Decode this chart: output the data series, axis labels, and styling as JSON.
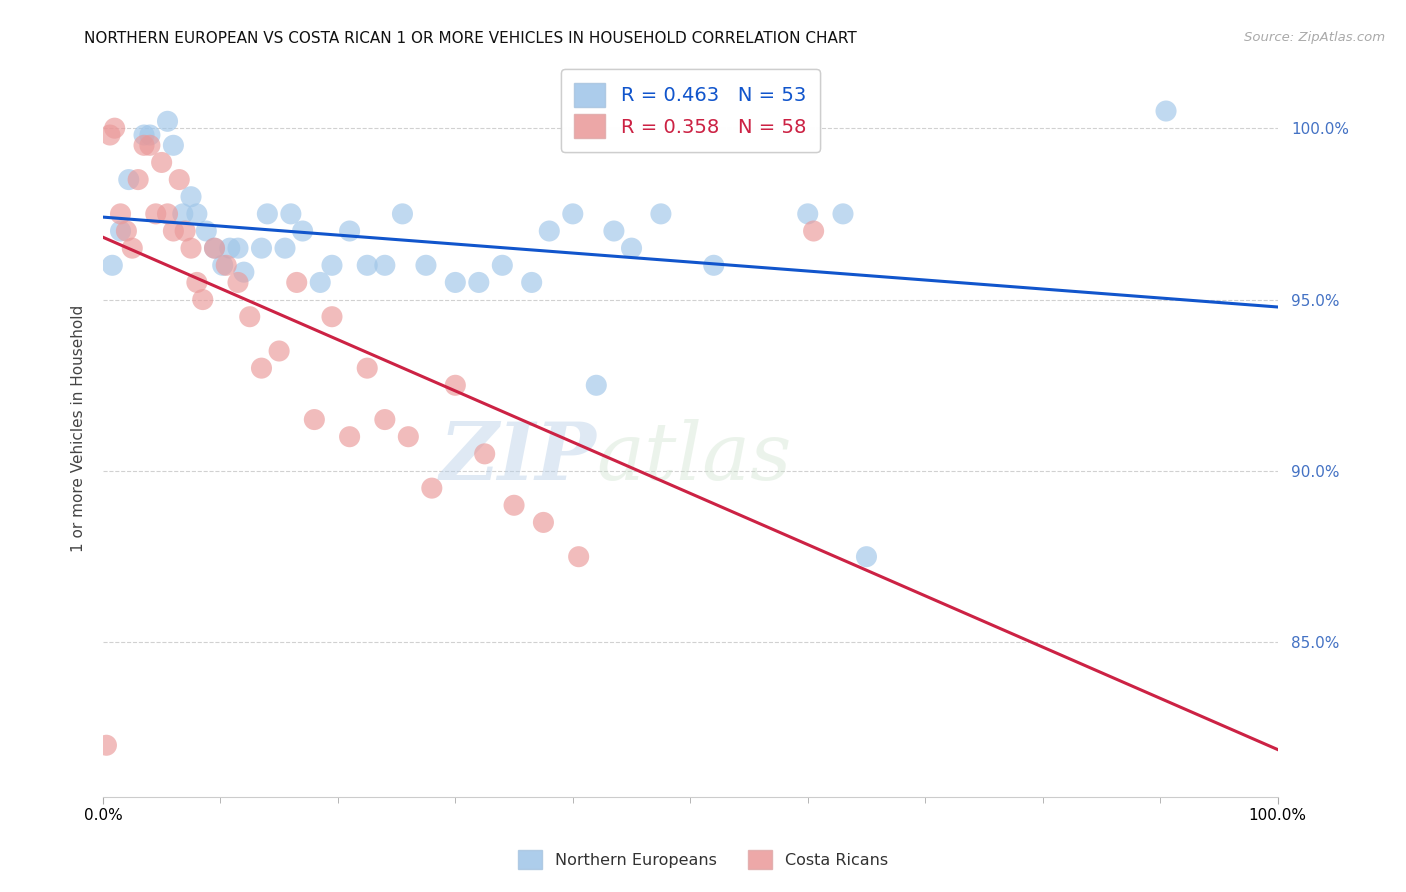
{
  "title": "NORTHERN EUROPEAN VS COSTA RICAN 1 OR MORE VEHICLES IN HOUSEHOLD CORRELATION CHART",
  "source": "Source: ZipAtlas.com",
  "ylabel": "1 or more Vehicles in Household",
  "xmin": 0.0,
  "xmax": 100.0,
  "ymin": 80.5,
  "ymax": 102.0,
  "blue_R": 0.463,
  "blue_N": 53,
  "pink_R": 0.358,
  "pink_N": 58,
  "blue_color": "#9fc5e8",
  "pink_color": "#ea9999",
  "blue_line_color": "#1155cc",
  "pink_line_color": "#cc2244",
  "watermark_zip": "ZIP",
  "watermark_atlas": "atlas",
  "yticks": [
    85.0,
    90.0,
    95.0,
    100.0
  ],
  "blue_x": [
    0.8,
    1.5,
    2.2,
    3.5,
    4.0,
    5.5,
    6.0,
    6.8,
    7.5,
    8.0,
    8.8,
    9.5,
    10.2,
    10.8,
    11.5,
    12.0,
    13.5,
    14.0,
    15.5,
    16.0,
    17.0,
    18.5,
    19.5,
    21.0,
    22.5,
    24.0,
    25.5,
    27.5,
    30.0,
    32.0,
    34.0,
    36.5,
    38.0,
    40.0,
    42.0,
    43.5,
    45.0,
    47.5,
    52.0,
    60.0,
    63.0,
    65.0,
    90.5
  ],
  "blue_y": [
    96.0,
    97.0,
    98.5,
    99.8,
    99.8,
    100.2,
    99.5,
    97.5,
    98.0,
    97.5,
    97.0,
    96.5,
    96.0,
    96.5,
    96.5,
    95.8,
    96.5,
    97.5,
    96.5,
    97.5,
    97.0,
    95.5,
    96.0,
    97.0,
    96.0,
    96.0,
    97.5,
    96.0,
    95.5,
    95.5,
    96.0,
    95.5,
    97.0,
    97.5,
    92.5,
    97.0,
    96.5,
    97.5,
    96.0,
    97.5,
    97.5,
    87.5,
    100.5
  ],
  "pink_x": [
    0.3,
    0.6,
    1.0,
    1.5,
    2.0,
    2.5,
    3.0,
    3.5,
    4.0,
    4.5,
    5.0,
    5.5,
    6.0,
    6.5,
    7.0,
    7.5,
    8.0,
    8.5,
    9.5,
    10.5,
    11.5,
    12.5,
    13.5,
    15.0,
    16.5,
    18.0,
    19.5,
    21.0,
    22.5,
    24.0,
    26.0,
    28.0,
    30.0,
    32.5,
    35.0,
    37.5,
    40.5,
    60.5
  ],
  "pink_y": [
    82.0,
    99.8,
    100.0,
    97.5,
    97.0,
    96.5,
    98.5,
    99.5,
    99.5,
    97.5,
    99.0,
    97.5,
    97.0,
    98.5,
    97.0,
    96.5,
    95.5,
    95.0,
    96.5,
    96.0,
    95.5,
    94.5,
    93.0,
    93.5,
    95.5,
    91.5,
    94.5,
    91.0,
    93.0,
    91.5,
    91.0,
    89.5,
    92.5,
    90.5,
    89.0,
    88.5,
    87.5,
    97.0
  ]
}
